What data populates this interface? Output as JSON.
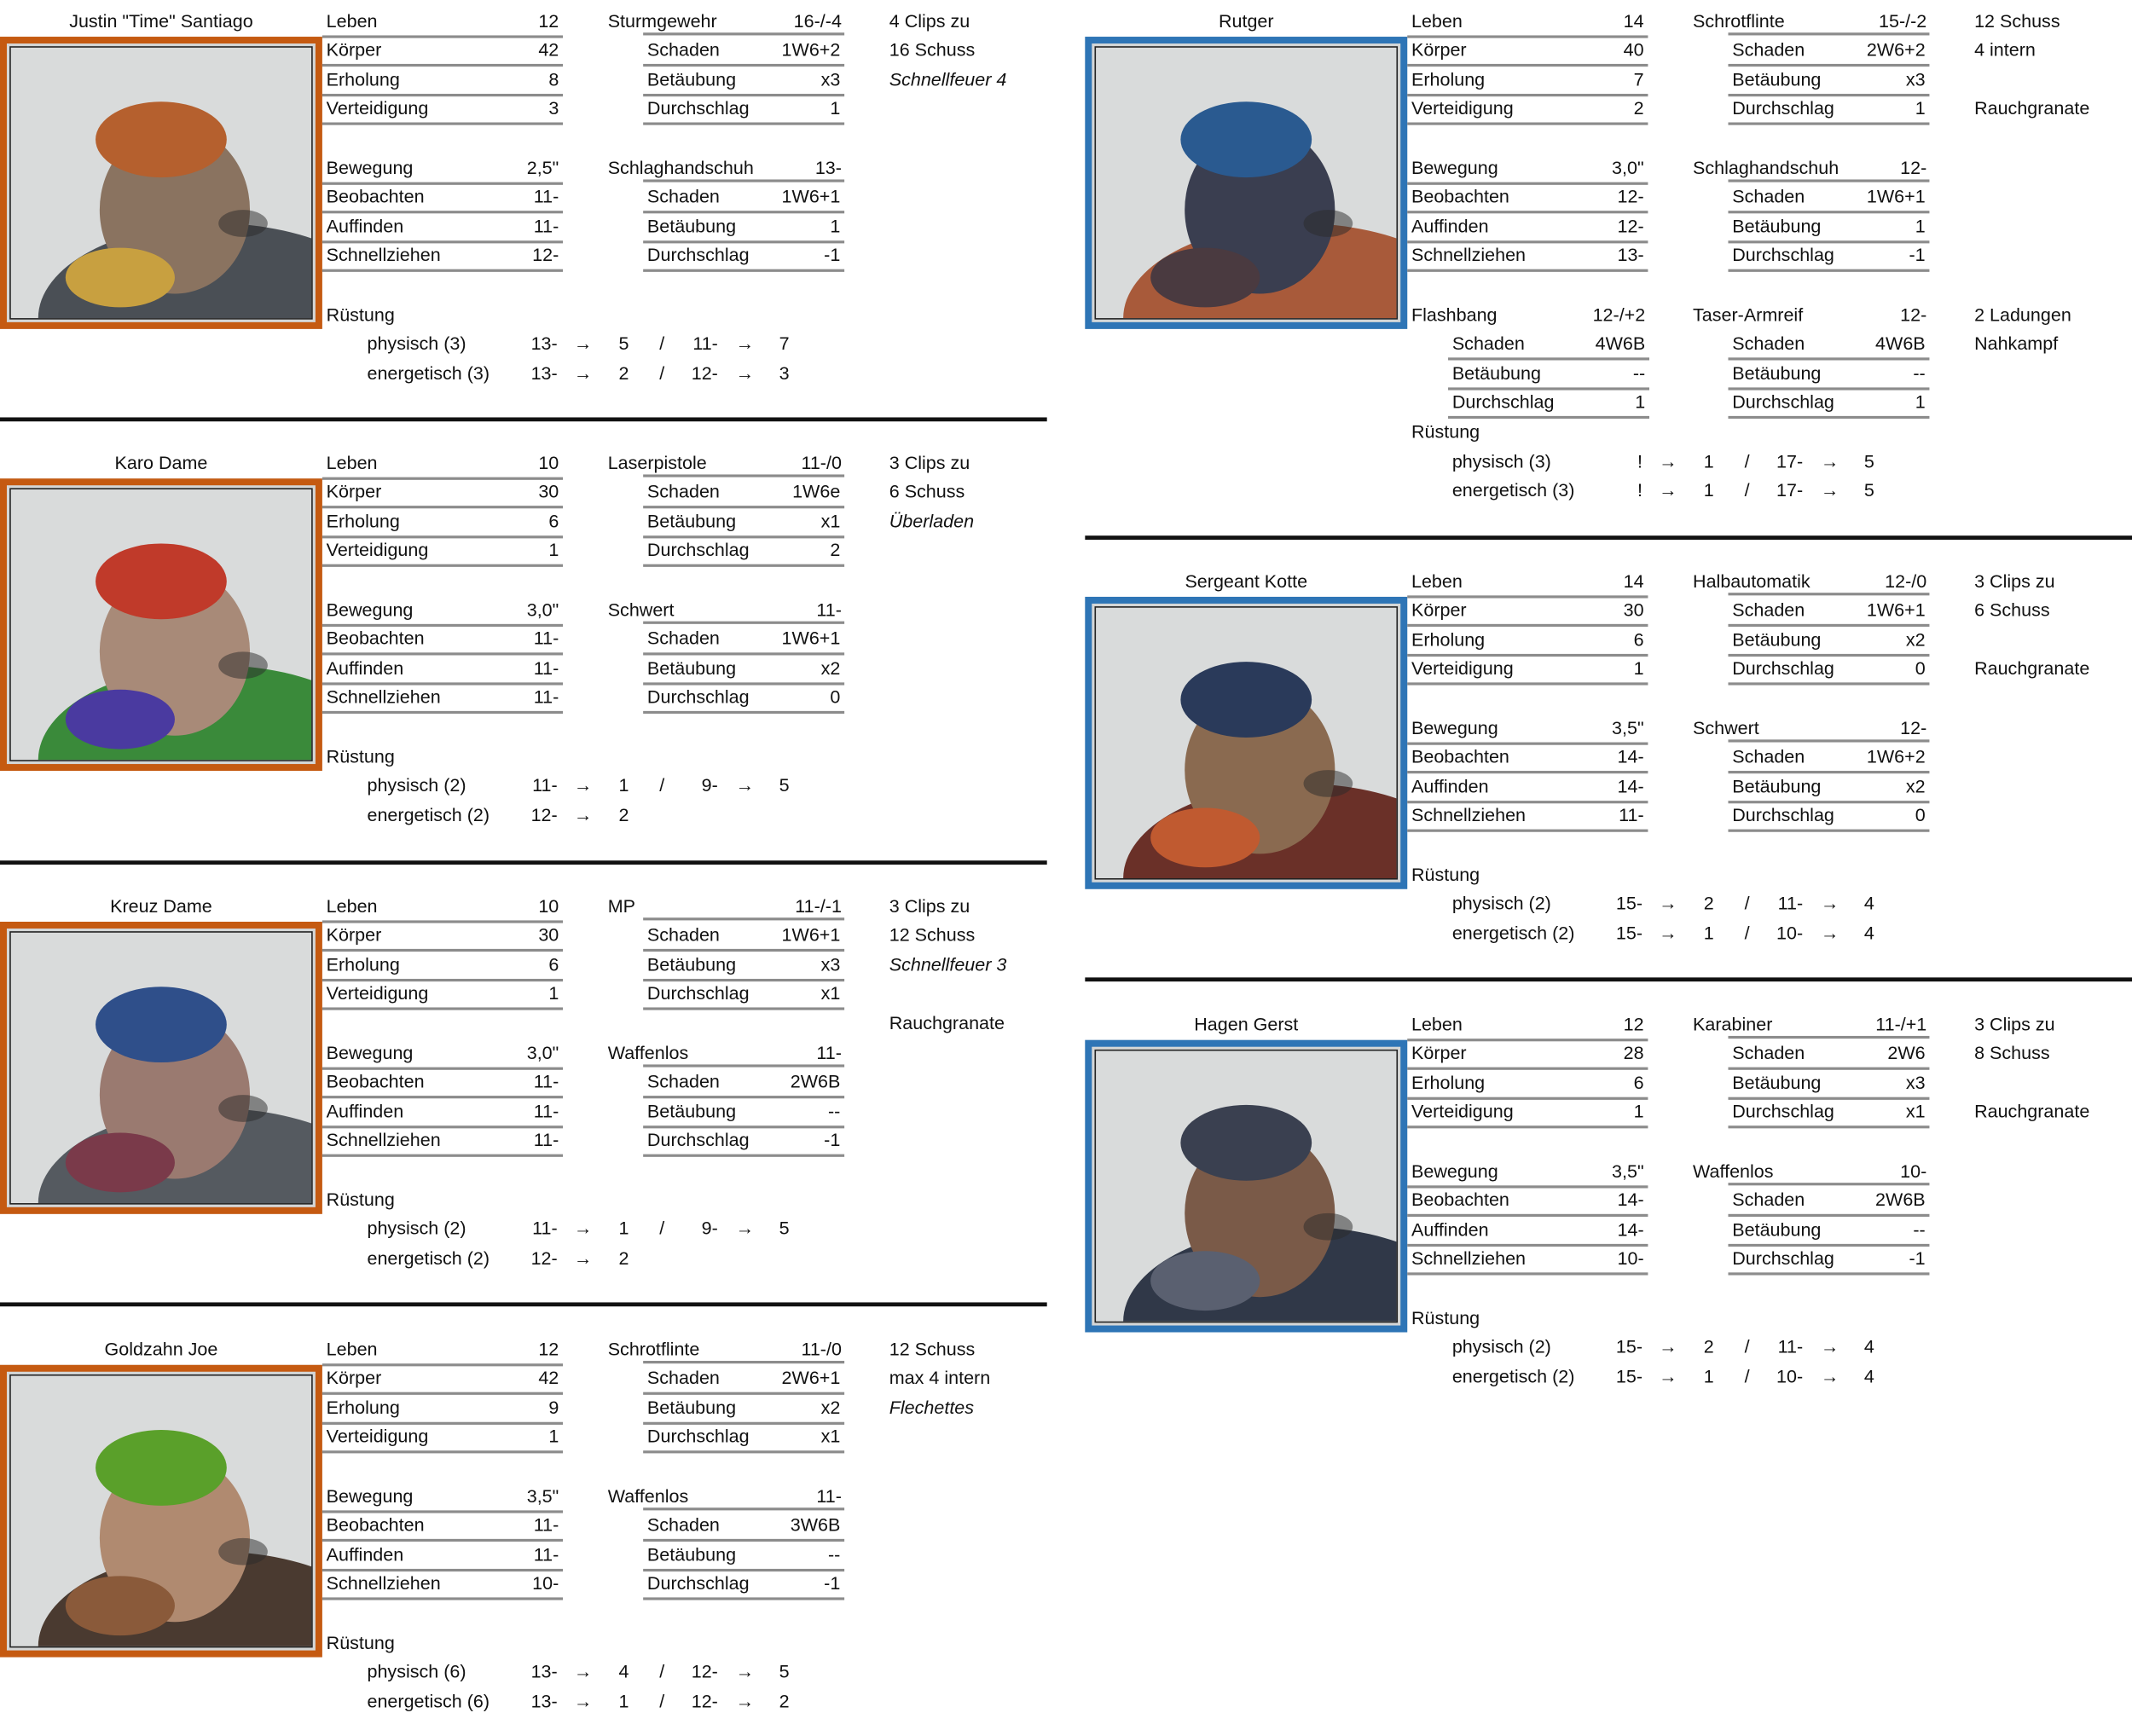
{
  "colors": {
    "orange": "#c55a11",
    "blue": "#2e75b6",
    "rule": "#8c8c8c"
  },
  "labels": {
    "armor": "Rüstung",
    "arrow": "→",
    "slash": "/"
  },
  "cards": [
    {
      "name": "Justin \"Time\" Santiago",
      "frame": "orange",
      "column": "left",
      "portrait": {
        "skin": "#8a7360",
        "hair": "#b5602e",
        "gear": "#4a4f55",
        "accent": "#c8a040"
      },
      "stats": [
        {
          "label": "Leben",
          "value": "12"
        },
        {
          "label": "Körper",
          "value": "42"
        },
        {
          "label": "Erholung",
          "value": "8"
        },
        {
          "label": "Verteidigung",
          "value": "3"
        }
      ],
      "moves": [
        {
          "label": "Bewegung",
          "value": "2,5\""
        },
        {
          "label": "Beobachten",
          "value": "11-"
        },
        {
          "label": "Auffinden",
          "value": "11-"
        },
        {
          "label": "Schnellziehen",
          "value": "12-"
        }
      ],
      "weapons": [
        {
          "name": "Sturmgewehr",
          "value": "16-/-4",
          "rows": [
            {
              "label": "Schaden",
              "value": "1W6+2"
            },
            {
              "label": "Betäubung",
              "value": "x3"
            },
            {
              "label": "Durchschlag",
              "value": "1"
            }
          ]
        },
        {
          "name": "Schlaghandschuh",
          "value": "13-",
          "rows": [
            {
              "label": "Schaden",
              "value": "1W6+1"
            },
            {
              "label": "Betäubung",
              "value": "1"
            },
            {
              "label": "Durchschlag",
              "value": "-1"
            }
          ]
        }
      ],
      "notes": [
        {
          "row": 0,
          "text": "4 Clips zu"
        },
        {
          "row": 1,
          "text": "16 Schuss"
        },
        {
          "row": 2,
          "text": "Schnellfeuer 4",
          "italic": true
        }
      ],
      "armor": [
        {
          "label": "physisch (3)",
          "roll1": "13-",
          "val1": "5",
          "roll2": "11-",
          "val2": "7"
        },
        {
          "label": "energetisch (3)",
          "roll1": "13-",
          "val1": "2",
          "roll2": "12-",
          "val2": "3"
        }
      ]
    },
    {
      "name": "Karo Dame",
      "frame": "orange",
      "column": "left",
      "portrait": {
        "skin": "#a88a78",
        "hair": "#c03a2a",
        "gear": "#3a8a3a",
        "accent": "#4a3aa0"
      },
      "stats": [
        {
          "label": "Leben",
          "value": "10"
        },
        {
          "label": "Körper",
          "value": "30"
        },
        {
          "label": "Erholung",
          "value": "6"
        },
        {
          "label": "Verteidigung",
          "value": "1"
        }
      ],
      "moves": [
        {
          "label": "Bewegung",
          "value": "3,0\""
        },
        {
          "label": "Beobachten",
          "value": "11-"
        },
        {
          "label": "Auffinden",
          "value": "11-"
        },
        {
          "label": "Schnellziehen",
          "value": "11-"
        }
      ],
      "weapons": [
        {
          "name": "Laserpistole",
          "value": "11-/0",
          "rows": [
            {
              "label": "Schaden",
              "value": "1W6e"
            },
            {
              "label": "Betäubung",
              "value": "x1"
            },
            {
              "label": "Durchschlag",
              "value": "2"
            }
          ]
        },
        {
          "name": "Schwert",
          "value": "11-",
          "rows": [
            {
              "label": "Schaden",
              "value": "1W6+1"
            },
            {
              "label": "Betäubung",
              "value": "x2"
            },
            {
              "label": "Durchschlag",
              "value": "0"
            }
          ]
        }
      ],
      "notes": [
        {
          "row": 0,
          "text": "3 Clips zu"
        },
        {
          "row": 1,
          "text": "6 Schuss"
        },
        {
          "row": 2,
          "text": "Überladen",
          "italic": true
        }
      ],
      "armor": [
        {
          "label": "physisch (2)",
          "roll1": "11-",
          "val1": "1",
          "roll2": "9-",
          "val2": "5"
        },
        {
          "label": "energetisch (2)",
          "roll1": "12-",
          "val1": "2"
        }
      ]
    },
    {
      "name": "Kreuz Dame",
      "frame": "orange",
      "column": "left",
      "portrait": {
        "skin": "#9a7a70",
        "hair": "#2f4f8a",
        "gear": "#555a60",
        "accent": "#7a3a4a"
      },
      "stats": [
        {
          "label": "Leben",
          "value": "10"
        },
        {
          "label": "Körper",
          "value": "30"
        },
        {
          "label": "Erholung",
          "value": "6"
        },
        {
          "label": "Verteidigung",
          "value": "1"
        }
      ],
      "moves": [
        {
          "label": "Bewegung",
          "value": "3,0\""
        },
        {
          "label": "Beobachten",
          "value": "11-"
        },
        {
          "label": "Auffinden",
          "value": "11-"
        },
        {
          "label": "Schnellziehen",
          "value": "11-"
        }
      ],
      "weapons": [
        {
          "name": "MP",
          "value": "11-/-1",
          "rows": [
            {
              "label": "Schaden",
              "value": "1W6+1"
            },
            {
              "label": "Betäubung",
              "value": "x3"
            },
            {
              "label": "Durchschlag",
              "value": "x1"
            }
          ]
        },
        {
          "name": "Waffenlos",
          "value": "11-",
          "rows": [
            {
              "label": "Schaden",
              "value": "2W6B"
            },
            {
              "label": "Betäubung",
              "value": "--"
            },
            {
              "label": "Durchschlag",
              "value": "-1"
            }
          ]
        }
      ],
      "notes": [
        {
          "row": 0,
          "text": "3 Clips zu"
        },
        {
          "row": 1,
          "text": "12 Schuss"
        },
        {
          "row": 2,
          "text": "Schnellfeuer 3",
          "italic": true
        },
        {
          "row": 4,
          "text": "Rauchgranate"
        }
      ],
      "armor": [
        {
          "label": "physisch (2)",
          "roll1": "11-",
          "val1": "1",
          "roll2": "9-",
          "val2": "5"
        },
        {
          "label": "energetisch (2)",
          "roll1": "12-",
          "val1": "2"
        }
      ]
    },
    {
      "name": "Goldzahn Joe",
      "frame": "orange",
      "column": "left",
      "portrait": {
        "skin": "#b08a70",
        "hair": "#5aa02a",
        "gear": "#4a3a30",
        "accent": "#8a5a3a"
      },
      "stats": [
        {
          "label": "Leben",
          "value": "12"
        },
        {
          "label": "Körper",
          "value": "42"
        },
        {
          "label": "Erholung",
          "value": "9"
        },
        {
          "label": "Verteidigung",
          "value": "1"
        }
      ],
      "moves": [
        {
          "label": "Bewegung",
          "value": "3,5\""
        },
        {
          "label": "Beobachten",
          "value": "11-"
        },
        {
          "label": "Auffinden",
          "value": "11-"
        },
        {
          "label": "Schnellziehen",
          "value": "10-"
        }
      ],
      "weapons": [
        {
          "name": "Schrotflinte",
          "value": "11-/0",
          "rows": [
            {
              "label": "Schaden",
              "value": "2W6+1"
            },
            {
              "label": "Betäubung",
              "value": "x2"
            },
            {
              "label": "Durchschlag",
              "value": "x1"
            }
          ]
        },
        {
          "name": "Waffenlos",
          "value": "11-",
          "rows": [
            {
              "label": "Schaden",
              "value": "3W6B"
            },
            {
              "label": "Betäubung",
              "value": "--"
            },
            {
              "label": "Durchschlag",
              "value": "-1"
            }
          ]
        }
      ],
      "notes": [
        {
          "row": 0,
          "text": "12 Schuss"
        },
        {
          "row": 1,
          "text": "max 4 intern"
        },
        {
          "row": 2,
          "text": "Flechettes",
          "italic": true
        }
      ],
      "armor": [
        {
          "label": "physisch (6)",
          "roll1": "13-",
          "val1": "4",
          "roll2": "12-",
          "val2": "5"
        },
        {
          "label": "energetisch (6)",
          "roll1": "13-",
          "val1": "1",
          "roll2": "12-",
          "val2": "2"
        }
      ]
    },
    {
      "name": "Rutger",
      "frame": "blue",
      "column": "right",
      "portrait": {
        "skin": "#3a3e50",
        "hair": "#2a5a90",
        "gear": "#a85a3a",
        "accent": "#4a3a40"
      },
      "stats": [
        {
          "label": "Leben",
          "value": "14"
        },
        {
          "label": "Körper",
          "value": "40"
        },
        {
          "label": "Erholung",
          "value": "7"
        },
        {
          "label": "Verteidigung",
          "value": "2"
        }
      ],
      "moves": [
        {
          "label": "Bewegung",
          "value": "3,0\""
        },
        {
          "label": "Beobachten",
          "value": "12-"
        },
        {
          "label": "Auffinden",
          "value": "12-"
        },
        {
          "label": "Schnellziehen",
          "value": "13-"
        }
      ],
      "weapons": [
        {
          "name": "Schrotflinte",
          "value": "15-/-2",
          "rows": [
            {
              "label": "Schaden",
              "value": "2W6+2"
            },
            {
              "label": "Betäubung",
              "value": "x3"
            },
            {
              "label": "Durchschlag",
              "value": "1"
            }
          ]
        },
        {
          "name": "Schlaghandschuh",
          "value": "12-",
          "rows": [
            {
              "label": "Schaden",
              "value": "1W6+1"
            },
            {
              "label": "Betäubung",
              "value": "1"
            },
            {
              "label": "Durchschlag",
              "value": "-1"
            }
          ]
        }
      ],
      "extra_weapons": [
        {
          "name": "Flashbang",
          "value": "12-/+2",
          "rows": [
            {
              "label": "Schaden",
              "value": "4W6B"
            },
            {
              "label": "Betäubung",
              "value": "--"
            },
            {
              "label": "Durchschlag",
              "value": "1"
            }
          ]
        },
        {
          "name": "Taser-Armreif",
          "value": "12-",
          "rows": [
            {
              "label": "Schaden",
              "value": "4W6B"
            },
            {
              "label": "Betäubung",
              "value": "--"
            },
            {
              "label": "Durchschlag",
              "value": "1"
            }
          ]
        }
      ],
      "notes": [
        {
          "row": 0,
          "text": "12 Schuss"
        },
        {
          "row": 1,
          "text": "4 intern"
        },
        {
          "row": 3,
          "text": "Rauchgranate"
        },
        {
          "row": 10,
          "text": "2 Ladungen"
        },
        {
          "row": 11,
          "text": "Nahkampf"
        }
      ],
      "armor": [
        {
          "label": "physisch (3)",
          "roll1": "!",
          "val1": "1",
          "roll2": "17-",
          "val2": "5"
        },
        {
          "label": "energetisch (3)",
          "roll1": "!",
          "val1": "1",
          "roll2": "17-",
          "val2": "5"
        }
      ]
    },
    {
      "name": "Sergeant Kotte",
      "frame": "blue",
      "column": "right",
      "portrait": {
        "skin": "#8a6a50",
        "hair": "#2a3a5a",
        "gear": "#6a3028",
        "accent": "#c05a30"
      },
      "stats": [
        {
          "label": "Leben",
          "value": "14"
        },
        {
          "label": "Körper",
          "value": "30"
        },
        {
          "label": "Erholung",
          "value": "6"
        },
        {
          "label": "Verteidigung",
          "value": "1"
        }
      ],
      "moves": [
        {
          "label": "Bewegung",
          "value": "3,5\""
        },
        {
          "label": "Beobachten",
          "value": "14-"
        },
        {
          "label": "Auffinden",
          "value": "14-"
        },
        {
          "label": "Schnellziehen",
          "value": "11-"
        }
      ],
      "weapons": [
        {
          "name": "Halbautomatik",
          "value": "12-/0",
          "rows": [
            {
              "label": "Schaden",
              "value": "1W6+1"
            },
            {
              "label": "Betäubung",
              "value": "x2"
            },
            {
              "label": "Durchschlag",
              "value": "0"
            }
          ]
        },
        {
          "name": "Schwert",
          "value": "12-",
          "rows": [
            {
              "label": "Schaden",
              "value": "1W6+2"
            },
            {
              "label": "Betäubung",
              "value": "x2"
            },
            {
              "label": "Durchschlag",
              "value": "0"
            }
          ]
        }
      ],
      "notes": [
        {
          "row": 0,
          "text": "3 Clips zu"
        },
        {
          "row": 1,
          "text": "6 Schuss"
        },
        {
          "row": 3,
          "text": "Rauchgranate"
        }
      ],
      "armor": [
        {
          "label": "physisch (2)",
          "roll1": "15-",
          "val1": "2",
          "roll2": "11-",
          "val2": "4"
        },
        {
          "label": "energetisch (2)",
          "roll1": "15-",
          "val1": "1",
          "roll2": "10-",
          "val2": "4"
        }
      ]
    },
    {
      "name": "Hagen Gerst",
      "frame": "blue",
      "column": "right",
      "portrait": {
        "skin": "#7a5a48",
        "hair": "#3a4050",
        "gear": "#303848",
        "accent": "#5a6070"
      },
      "stats": [
        {
          "label": "Leben",
          "value": "12"
        },
        {
          "label": "Körper",
          "value": "28"
        },
        {
          "label": "Erholung",
          "value": "6"
        },
        {
          "label": "Verteidigung",
          "value": "1"
        }
      ],
      "moves": [
        {
          "label": "Bewegung",
          "value": "3,5\""
        },
        {
          "label": "Beobachten",
          "value": "14-"
        },
        {
          "label": "Auffinden",
          "value": "14-"
        },
        {
          "label": "Schnellziehen",
          "value": "10-"
        }
      ],
      "weapons": [
        {
          "name": "Karabiner",
          "value": "11-/+1",
          "rows": [
            {
              "label": "Schaden",
              "value": "2W6"
            },
            {
              "label": "Betäubung",
              "value": "x3"
            },
            {
              "label": "Durchschlag",
              "value": "x1"
            }
          ]
        },
        {
          "name": "Waffenlos",
          "value": "10-",
          "rows": [
            {
              "label": "Schaden",
              "value": "2W6B"
            },
            {
              "label": "Betäubung",
              "value": "--"
            },
            {
              "label": "Durchschlag",
              "value": "-1"
            }
          ]
        }
      ],
      "notes": [
        {
          "row": 0,
          "text": "3 Clips zu"
        },
        {
          "row": 1,
          "text": "8 Schuss"
        },
        {
          "row": 3,
          "text": "Rauchgranate"
        }
      ],
      "armor": [
        {
          "label": "physisch (2)",
          "roll1": "15-",
          "val1": "2",
          "roll2": "11-",
          "val2": "4"
        },
        {
          "label": "energetisch (2)",
          "roll1": "15-",
          "val1": "1",
          "roll2": "10-",
          "val2": "4"
        }
      ]
    }
  ]
}
